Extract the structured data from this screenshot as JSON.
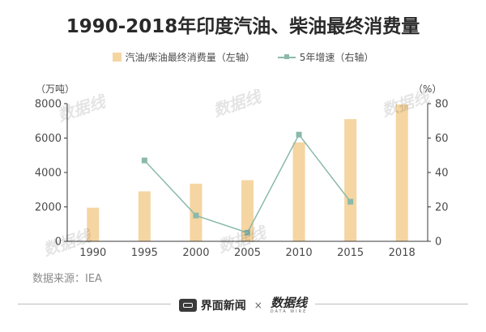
{
  "title": "1990-2018年印度汽油、柴油最终消费量",
  "legend": {
    "bar_label": "汽油/柴油最终消费量（左轴）",
    "line_label": "5年增速（右轴）"
  },
  "colors": {
    "bar": "#F5D5A1",
    "line": "#8BB9AC",
    "axis": "#3a3a3a",
    "text": "#4a4a4a"
  },
  "chart_data": {
    "type": "bar",
    "categories": [
      "1990",
      "1995",
      "2000",
      "2005",
      "2010",
      "2015",
      "2018"
    ],
    "series": [
      {
        "name": "汽油/柴油最终消费量（左轴）",
        "type": "bar",
        "axis": "left",
        "values": [
          1950,
          2900,
          3350,
          3550,
          5750,
          7100,
          7950
        ]
      },
      {
        "name": "5年增速（右轴）",
        "type": "line",
        "axis": "right",
        "values": [
          null,
          47,
          15,
          5,
          62,
          23,
          null
        ]
      }
    ],
    "left_axis": {
      "unit": "（万吨）",
      "range": [
        0,
        8000
      ],
      "ticks": [
        "0",
        "2000",
        "4000",
        "6000",
        "8000"
      ]
    },
    "right_axis": {
      "unit": "（%）",
      "range": [
        0,
        80
      ],
      "ticks": [
        "0",
        "20",
        "40",
        "60",
        "80"
      ]
    },
    "grid": false,
    "legend_position": "top-center"
  },
  "source": "数据来源：IEA",
  "footer": {
    "brand": "界面新闻",
    "separator": "×",
    "partner": "数据线",
    "partner_sub": "DATA WIRE"
  },
  "watermark_text": "数据线"
}
